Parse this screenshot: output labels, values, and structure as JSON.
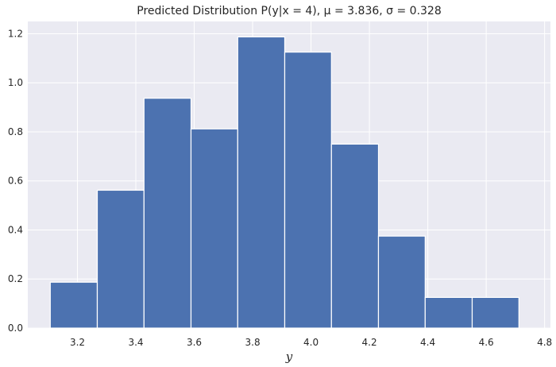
{
  "chart_data": {
    "type": "bar",
    "title": "Predicted Distribution P(y|x = 4), μ = 3.836, σ = 0.328",
    "xlabel": "y",
    "ylabel": "",
    "xlim": [
      3.03,
      4.82
    ],
    "ylim": [
      0,
      1.25
    ],
    "xticks": [
      3.2,
      3.4,
      3.6,
      3.8,
      4.0,
      4.2,
      4.4,
      4.6,
      4.8
    ],
    "xtick_labels": [
      "3.2",
      "3.4",
      "3.6",
      "3.8",
      "4.0",
      "4.2",
      "4.4",
      "4.6",
      "4.8"
    ],
    "yticks": [
      0.0,
      0.2,
      0.4,
      0.6,
      0.8,
      1.0,
      1.2
    ],
    "ytick_labels": [
      "0.0",
      "0.2",
      "0.4",
      "0.6",
      "0.8",
      "1.0",
      "1.2"
    ],
    "grid": true,
    "bins": [
      {
        "start": 3.107,
        "end": 3.268,
        "value": 0.187
      },
      {
        "start": 3.268,
        "end": 3.428,
        "value": 0.562
      },
      {
        "start": 3.428,
        "end": 3.589,
        "value": 0.937
      },
      {
        "start": 3.589,
        "end": 3.749,
        "value": 0.812
      },
      {
        "start": 3.749,
        "end": 3.91,
        "value": 1.187
      },
      {
        "start": 3.91,
        "end": 4.07,
        "value": 1.125
      },
      {
        "start": 4.07,
        "end": 4.231,
        "value": 0.75
      },
      {
        "start": 4.231,
        "end": 4.391,
        "value": 0.375
      },
      {
        "start": 4.391,
        "end": 4.552,
        "value": 0.125
      },
      {
        "start": 4.552,
        "end": 4.712,
        "value": 0.125
      }
    ],
    "colors": {
      "bar": "#4c72b0",
      "background": "#eaeaf2",
      "grid": "#ffffff"
    }
  }
}
